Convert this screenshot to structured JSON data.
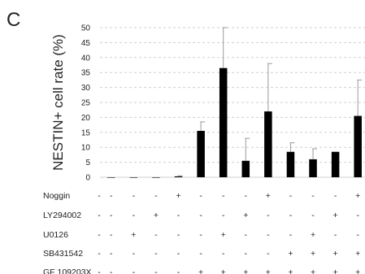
{
  "panel_label": "C",
  "chart_data": {
    "type": "bar",
    "ylabel": "NESTIN+ cell rate (%)",
    "ylim": [
      0,
      50
    ],
    "yticks": [
      0,
      5,
      10,
      15,
      20,
      25,
      30,
      35,
      40,
      45,
      50
    ],
    "grid": true,
    "colors": {
      "bar": "#000000",
      "error": "#9a9a9a",
      "grid": "#cfcfcf"
    },
    "values": [
      0,
      0,
      0,
      0.3,
      15.5,
      36.5,
      5.5,
      22,
      8.5,
      6,
      8.5,
      20.5
    ],
    "errors": [
      0,
      0,
      0,
      0.2,
      3,
      13.5,
      7.5,
      16,
      3,
      3.5,
      0,
      12
    ],
    "treatments": [
      {
        "name": "Noggin",
        "signs": [
          "-",
          "-",
          "-",
          "+",
          "-",
          "-",
          "-",
          "+",
          "-",
          "-",
          "-",
          "+"
        ]
      },
      {
        "name": "LY294002",
        "signs": [
          "-",
          "-",
          "+",
          "-",
          "-",
          "-",
          "+",
          "-",
          "-",
          "-",
          "+",
          "-"
        ]
      },
      {
        "name": "U0126",
        "signs": [
          "-",
          "+",
          "-",
          "-",
          "-",
          "+",
          "-",
          "-",
          "-",
          "+",
          "-",
          "-"
        ]
      },
      {
        "name": "SB431542",
        "signs": [
          "-",
          "-",
          "-",
          "-",
          "-",
          "-",
          "-",
          "-",
          "+",
          "+",
          "+",
          "+"
        ]
      },
      {
        "name": "GF 109203X",
        "signs": [
          "-",
          "-",
          "-",
          "-",
          "+",
          "+",
          "+",
          "+",
          "+",
          "+",
          "+",
          "+"
        ]
      }
    ]
  }
}
